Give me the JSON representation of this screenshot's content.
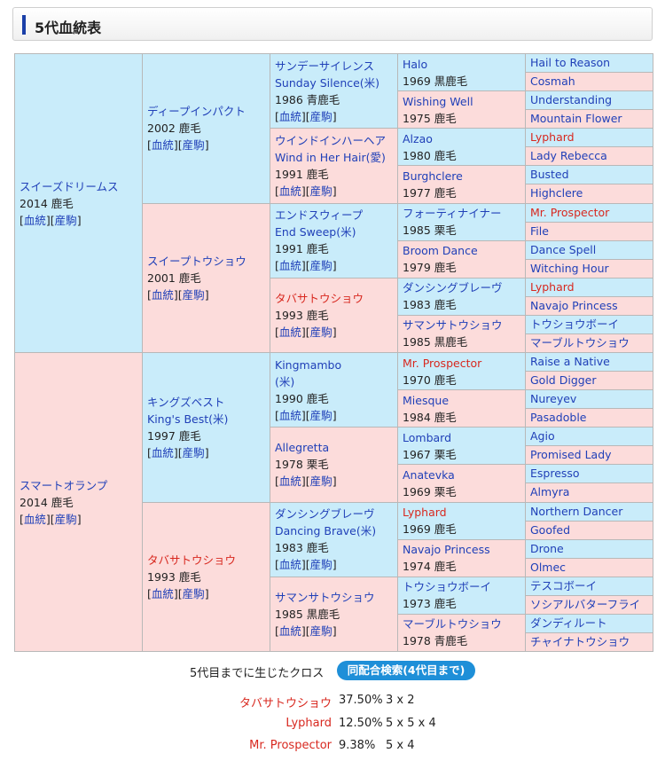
{
  "page_title": "5代血統表",
  "links": {
    "kettou": "血統",
    "sanku": "産駒"
  },
  "gen1": [
    {
      "name": "スイーズドリームス",
      "info": "2014 鹿毛"
    },
    {
      "name": "スマートオランプ",
      "info": "2014 鹿毛"
    }
  ],
  "gen2": [
    {
      "name": "ディープインパクト",
      "info": "2002 鹿毛"
    },
    {
      "name": "スイープトウショウ",
      "info": "2001 鹿毛"
    },
    {
      "name": "キングズベスト",
      "name2": "King's Best(米)",
      "info": "1997 鹿毛"
    },
    {
      "name": "タバサトウショウ",
      "info": "1993 鹿毛"
    }
  ],
  "gen3": [
    {
      "name": "サンデーサイレンス",
      "name2": "Sunday Silence(米)",
      "info": "1986 青鹿毛"
    },
    {
      "name": "ウインドインハーヘア",
      "name2": "Wind in Her Hair(愛)",
      "info": "1991 鹿毛"
    },
    {
      "name": "エンドスウィープ",
      "name2": "End Sweep(米)",
      "info": "1991 鹿毛"
    },
    {
      "name": "タバサトウショウ",
      "info": "1993 鹿毛"
    },
    {
      "name": "Kingmambo",
      "name2": "(米)",
      "info": "1990 鹿毛"
    },
    {
      "name": "Allegretta",
      "info": "1978 栗毛"
    },
    {
      "name": "ダンシングブレーヴ",
      "name2": "Dancing Brave(米)",
      "info": "1983 鹿毛"
    },
    {
      "name": "サマンサトウショウ",
      "info": "1985 黒鹿毛"
    }
  ],
  "gen4": [
    {
      "name": "Halo",
      "info": "1969 黒鹿毛"
    },
    {
      "name": "Wishing Well",
      "info": "1975 鹿毛"
    },
    {
      "name": "Alzao",
      "info": "1980 鹿毛"
    },
    {
      "name": "Burghclere",
      "info": "1977 鹿毛"
    },
    {
      "name": "フォーティナイナー",
      "info": "1985 栗毛"
    },
    {
      "name": "Broom Dance",
      "info": "1979 鹿毛"
    },
    {
      "name": "ダンシングブレーヴ",
      "info": "1983 鹿毛"
    },
    {
      "name": "サマンサトウショウ",
      "info": "1985 黒鹿毛"
    },
    {
      "name": "Mr. Prospector",
      "info": "1970 鹿毛"
    },
    {
      "name": "Miesque",
      "info": "1984 鹿毛"
    },
    {
      "name": "Lombard",
      "info": "1967 栗毛"
    },
    {
      "name": "Anatevka",
      "info": "1969 栗毛"
    },
    {
      "name": "Lyphard",
      "info": "1969 鹿毛"
    },
    {
      "name": "Navajo Princess",
      "info": "1974 鹿毛"
    },
    {
      "name": "トウショウボーイ",
      "info": "1973 鹿毛"
    },
    {
      "name": "マーブルトウショウ",
      "info": "1978 青鹿毛"
    }
  ],
  "gen5": [
    "Hail to Reason",
    "Cosmah",
    "Understanding",
    "Mountain Flower",
    "Lyphard",
    "Lady Rebecca",
    "Busted",
    "Highclere",
    "Mr. Prospector",
    "File",
    "Dance Spell",
    "Witching Hour",
    "Lyphard",
    "Navajo Princess",
    "トウショウボーイ",
    "マーブルトウショウ",
    "Raise a Native",
    "Gold Digger",
    "Nureyev",
    "Pasadoble",
    "Agio",
    "Promised Lady",
    "Espresso",
    "Almyra",
    "Northern Dancer",
    "Goofed",
    "Drone",
    "Olmec",
    "テスコボーイ",
    "ソシアルバターフライ",
    "ダンディルート",
    "チャイナトウショウ"
  ],
  "cross": {
    "label": "5代目までに生じたクロス",
    "button": "同配合検索(4代目まで)",
    "rows": [
      {
        "name": "タバサトウショウ",
        "percent": "37.50%",
        "pattern": "3 x 2"
      },
      {
        "name": "Lyphard",
        "percent": "12.50%",
        "pattern": "5 x 5 x 4"
      },
      {
        "name": "Mr. Prospector",
        "percent": "9.38%",
        "pattern": "5 x 4"
      }
    ]
  },
  "colors": {
    "male_bg": "#c9ecfa",
    "female_bg": "#fcdcdb",
    "link": "#2040b8",
    "cross_highlight": "#d8281f",
    "button": "#1e8fd8"
  }
}
